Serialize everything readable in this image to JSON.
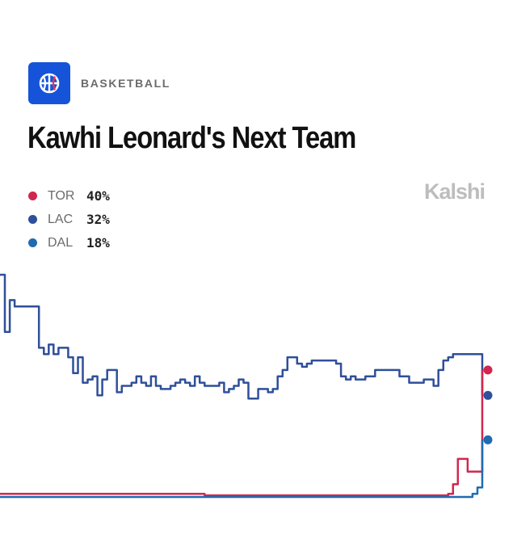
{
  "header": {
    "category": "BASKETBALL",
    "title": "Kawhi Leonard's Next Team",
    "brand": "Kalshi",
    "icon": "basketball-icon",
    "icon_color": "#1554d9"
  },
  "legend": [
    {
      "name": "TOR",
      "value": "40%",
      "color": "#d0264f"
    },
    {
      "name": "LAC",
      "value": "32%",
      "color": "#2f4f9a"
    },
    {
      "name": "DAL",
      "value": "18%",
      "color": "#1f6bb0"
    }
  ],
  "chart_data": {
    "type": "line",
    "title": "Kawhi Leonard's Next Team",
    "xlabel": "",
    "ylabel": "",
    "grid": false,
    "legend_position": "top-left",
    "line_style": "step",
    "ylim": [
      0,
      70
    ],
    "x": [
      0,
      1,
      2,
      3,
      4,
      5,
      6,
      7,
      8,
      9,
      10,
      11,
      12,
      13,
      14,
      15,
      16,
      17,
      18,
      19,
      20,
      21,
      22,
      23,
      24,
      25,
      26,
      27,
      28,
      29,
      30,
      31,
      32,
      33,
      34,
      35,
      36,
      37,
      38,
      39,
      40,
      41,
      42,
      43,
      44,
      45,
      46,
      47,
      48,
      49,
      50,
      51,
      52,
      53,
      54,
      55,
      56,
      57,
      58,
      59,
      60,
      61,
      62,
      63,
      64,
      65,
      66,
      67,
      68,
      69,
      70,
      71,
      72,
      73,
      74,
      75,
      76,
      77,
      78,
      79,
      80,
      81,
      82,
      83,
      84,
      85,
      86,
      87,
      88,
      89,
      90,
      91,
      92,
      93,
      94,
      95,
      96,
      97,
      98,
      99
    ],
    "series": [
      {
        "name": "LAC",
        "color": "#2f4f9a",
        "values": [
          70,
          52,
          62,
          60,
          60,
          60,
          60,
          60,
          47,
          45,
          48,
          45,
          47,
          47,
          44,
          39,
          44,
          36,
          37,
          38,
          32,
          37,
          40,
          40,
          33,
          35,
          35,
          36,
          38,
          36,
          35,
          38,
          35,
          34,
          34,
          35,
          36,
          37,
          36,
          35,
          38,
          36,
          35,
          35,
          35,
          36,
          33,
          34,
          35,
          37,
          36,
          31,
          31,
          34,
          34,
          33,
          34,
          38,
          40,
          44,
          44,
          42,
          41,
          42,
          43,
          43,
          43,
          43,
          43,
          42,
          38,
          37,
          38,
          37,
          37,
          38,
          38,
          40,
          40,
          40,
          40,
          40,
          38,
          38,
          36,
          36,
          36,
          37,
          37,
          35,
          40,
          43,
          44,
          45,
          45,
          45,
          45,
          45,
          45,
          32
        ]
      },
      {
        "name": "TOR",
        "color": "#d0264f",
        "values": [
          1,
          1,
          1,
          1,
          1,
          1,
          1,
          1,
          1,
          1,
          1,
          1,
          1,
          1,
          1,
          1,
          1,
          1,
          1,
          1,
          1,
          1,
          1,
          1,
          1,
          1,
          1,
          1,
          1,
          1,
          1,
          1,
          1,
          1,
          1,
          1,
          1,
          1,
          1,
          1,
          1,
          1,
          0.5,
          0.5,
          0.5,
          0.5,
          0.5,
          0.5,
          0.5,
          0.5,
          0.5,
          0.5,
          0.5,
          0.5,
          0.5,
          0.5,
          0.5,
          0.5,
          0.5,
          0.5,
          0.5,
          0.5,
          0.5,
          0.5,
          0.5,
          0.5,
          0.5,
          0.5,
          0.5,
          0.5,
          0.5,
          0.5,
          0.5,
          0.5,
          0.5,
          0.5,
          0.5,
          0.5,
          0.5,
          0.5,
          0.5,
          0.5,
          0.5,
          0.5,
          0.5,
          0.5,
          0.5,
          0.5,
          0.5,
          0.5,
          0.5,
          0.5,
          1,
          4,
          12,
          12,
          8,
          8,
          8,
          40
        ]
      },
      {
        "name": "DAL",
        "color": "#1f6bb0",
        "values": [
          0,
          0,
          0,
          0,
          0,
          0,
          0,
          0,
          0,
          0,
          0,
          0,
          0,
          0,
          0,
          0,
          0,
          0,
          0,
          0,
          0,
          0,
          0,
          0,
          0,
          0,
          0,
          0,
          0,
          0,
          0,
          0,
          0,
          0,
          0,
          0,
          0,
          0,
          0,
          0,
          0,
          0,
          0,
          0,
          0,
          0,
          0,
          0,
          0,
          0,
          0,
          0,
          0,
          0,
          0,
          0,
          0,
          0,
          0,
          0,
          0,
          0,
          0,
          0,
          0,
          0,
          0,
          0,
          0,
          0,
          0,
          0,
          0,
          0,
          0,
          0,
          0,
          0,
          0,
          0,
          0,
          0,
          0,
          0,
          0,
          0,
          0,
          0,
          0,
          0,
          0,
          0,
          0,
          0,
          0,
          0,
          0,
          1,
          3,
          18
        ]
      }
    ]
  }
}
